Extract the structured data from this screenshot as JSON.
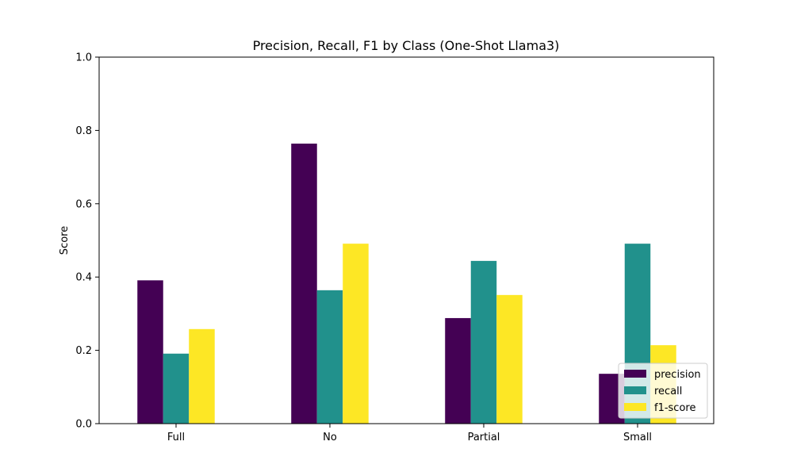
{
  "chart_data": {
    "type": "bar",
    "title": "Precision, Recall, F1 by Class (One-Shot Llama3)",
    "xlabel": "",
    "ylabel": "Score",
    "categories": [
      "Full",
      "No",
      "Partial",
      "Small"
    ],
    "series": [
      {
        "name": "precision",
        "color": "#440154",
        "values": [
          0.391,
          0.764,
          0.288,
          0.136
        ]
      },
      {
        "name": "recall",
        "color": "#21918c",
        "values": [
          0.191,
          0.364,
          0.444,
          0.491
        ]
      },
      {
        "name": "f1-score",
        "color": "#fde725",
        "values": [
          0.258,
          0.491,
          0.351,
          0.214
        ]
      }
    ],
    "ylim": [
      0,
      1.0
    ],
    "yticks": [
      "0.0",
      "0.2",
      "0.4",
      "0.6",
      "0.8",
      "1.0"
    ],
    "grid": false,
    "legend_position": "lower-right"
  }
}
